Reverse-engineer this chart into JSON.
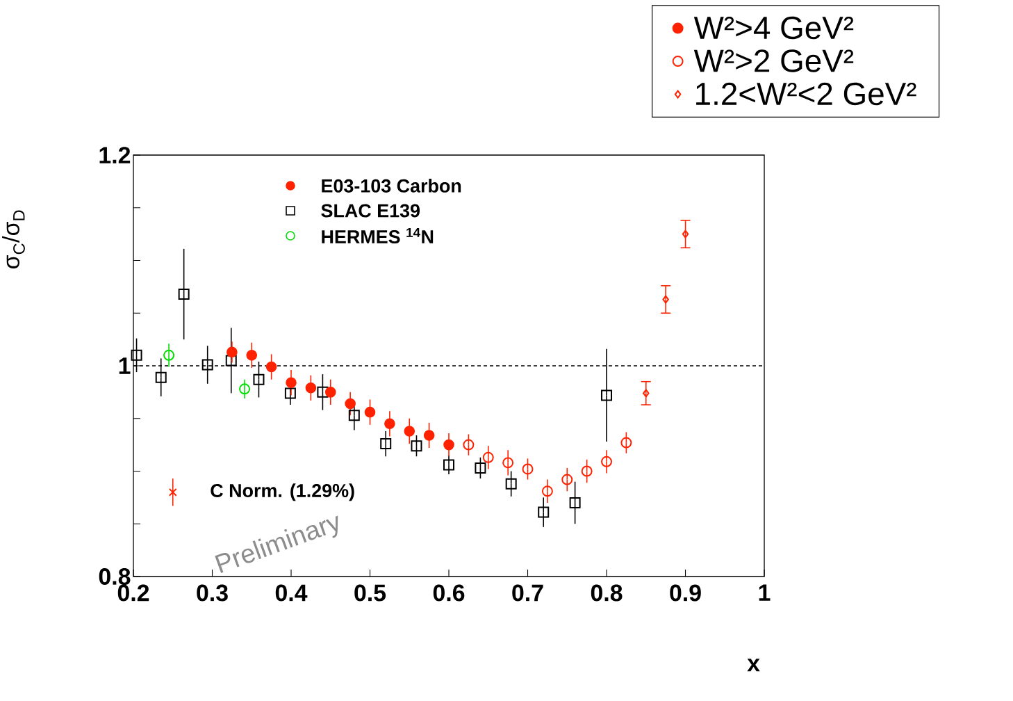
{
  "chart_data": {
    "type": "scatter",
    "xlabel": "x",
    "ylabel": "σ$_{C}$/σ$_{D}$",
    "xlim": [
      0.2,
      1
    ],
    "ylim": [
      0.8,
      1.2
    ],
    "xticks": [
      0.2,
      0.3,
      0.4,
      0.5,
      0.6,
      0.7,
      0.8,
      0.9,
      1
    ],
    "yticks": [
      0.8,
      {
        "value": 0.85,
        "label": null
      },
      {
        "value": 0.9,
        "label": null
      },
      {
        "value": 0.95,
        "label": null
      },
      1,
      {
        "value": 1.05,
        "label": null
      },
      {
        "value": 1.1,
        "label": null
      },
      {
        "value": 1.15,
        "label": null
      },
      1.2
    ],
    "grid": false,
    "legend": "top right",
    "annotations": [
      "E03-103 Carbon",
      "Preliminary"
    ],
    "ref_lines": [
      {
        "axis": "y",
        "value": 1,
        "line_style": "dashed"
      }
    ],
    "series": [
      {
        "name": "W²>4 GeV²",
        "color": "#ff2200",
        "marker": "circle",
        "x": [
          0.325,
          0.35,
          0.375,
          0.4,
          0.425,
          0.45,
          0.475,
          0.5,
          0.525,
          0.55,
          0.575,
          0.6
        ],
        "values": [
          1.013,
          1.01,
          0.999,
          0.984,
          0.979,
          0.975,
          0.964,
          0.956,
          0.945,
          0.938,
          0.934,
          0.925
        ],
        "errors": [
          0.01,
          0.012,
          0.012,
          0.012,
          0.012,
          0.012,
          0.011,
          0.012,
          0.012,
          0.012,
          0.012,
          0.011
        ]
      },
      {
        "name": "W²>2 GeV²",
        "color": "#ff2200",
        "marker": "circle",
        "x": [
          0.625,
          0.65,
          0.675,
          0.7,
          0.725,
          0.75,
          0.775,
          0.8,
          0.825
        ],
        "values": [
          0.925,
          0.913,
          0.908,
          0.902,
          0.881,
          0.892,
          0.9,
          0.909,
          0.927
        ],
        "errors": [
          0.01,
          0.011,
          0.012,
          0.01,
          0.011,
          0.011,
          0.011,
          0.011,
          0.01
        ]
      },
      {
        "name": "1.2<W²<2 GeV²",
        "color": "#ff2200",
        "marker": "diamond",
        "x": [
          0.85,
          0.875,
          0.9
        ],
        "values": [
          0.974,
          1.063,
          1.125
        ],
        "errors": [
          0.011,
          0.013,
          0.013
        ]
      },
      {
        "name": "SLAC E139",
        "color": "#000000",
        "marker": "square",
        "x": [
          0.204,
          0.235,
          0.264,
          0.294,
          0.324,
          0.359,
          0.399,
          0.44,
          0.48,
          0.52,
          0.559,
          0.6,
          0.64,
          0.679,
          0.72,
          0.76,
          0.8
        ],
        "values": [
          1.01,
          0.989,
          1.068,
          1.001,
          1.005,
          0.987,
          0.974,
          0.975,
          0.953,
          0.926,
          0.924,
          0.906,
          0.903,
          0.888,
          0.861,
          0.87,
          0.972
        ],
        "errors": [
          0.016,
          0.018,
          0.043,
          0.018,
          0.031,
          0.017,
          0.011,
          0.017,
          0.014,
          0.012,
          0.01,
          0.009,
          0.01,
          0.012,
          0.014,
          0.02,
          0.044
        ]
      },
      {
        "name": "HERMES $^{14}$N",
        "color": "#00dd00",
        "marker": "circle",
        "x": [
          0.245,
          0.341
        ],
        "values": [
          1.01,
          0.978
        ],
        "errors": [
          0.011,
          0.009
        ]
      },
      {
        "name": "C Norm. (1.29%)",
        "color": "#ff2200",
        "marker": "cross",
        "x": [
          0.25
        ],
        "values": [
          0.88
        ],
        "errors": [
          0.013
        ]
      }
    ]
  }
}
